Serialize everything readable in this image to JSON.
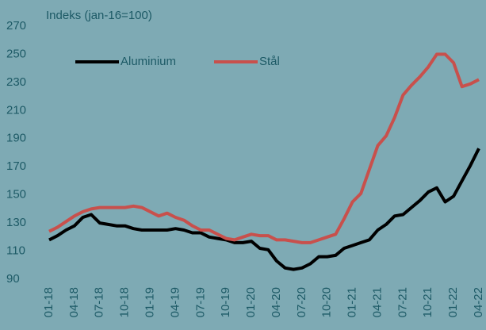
{
  "chart_data": {
    "type": "line",
    "title": "Indeks (jan-16=100)",
    "categories": [
      "01-18",
      null,
      null,
      "04-18",
      null,
      null,
      "07-18",
      null,
      null,
      "10-18",
      null,
      null,
      "01-19",
      null,
      null,
      "04-19",
      null,
      null,
      "07-19",
      null,
      null,
      "10-19",
      null,
      null,
      "01-20",
      null,
      null,
      "04-20",
      null,
      null,
      "07-20",
      null,
      null,
      "10-20",
      null,
      null,
      "01-21",
      null,
      null,
      "04-21",
      null,
      null,
      "07-21",
      null,
      null,
      "10-21",
      null,
      null,
      "01-22",
      null,
      null,
      "04-22"
    ],
    "series": [
      {
        "name": "Aluminium",
        "color": "#000000",
        "values": [
          118,
          121,
          125,
          128,
          134,
          136,
          130,
          129,
          128,
          128,
          126,
          125,
          125,
          125,
          125,
          126,
          125,
          123,
          123,
          120,
          119,
          118,
          116,
          116,
          117,
          112,
          111,
          103,
          98,
          97,
          98,
          101,
          106,
          106,
          107,
          112,
          114,
          116,
          118,
          125,
          129,
          135,
          136,
          141,
          146,
          152,
          155,
          145,
          149,
          160,
          171,
          183
        ]
      },
      {
        "name": "Stål",
        "color": "#c8504c",
        "values": [
          124,
          127,
          131,
          135,
          138,
          140,
          141,
          141,
          141,
          141,
          142,
          141,
          138,
          135,
          137,
          134,
          132,
          128,
          125,
          125,
          122,
          119,
          118,
          120,
          122,
          121,
          121,
          118,
          118,
          117,
          116,
          116,
          118,
          120,
          122,
          133,
          145,
          151,
          168,
          185,
          192,
          205,
          221,
          228,
          234,
          241,
          250,
          250,
          244,
          227,
          229,
          232
        ]
      }
    ],
    "ylim": [
      90,
      270
    ],
    "yticks": [
      90,
      110,
      130,
      150,
      170,
      190,
      210,
      230,
      250,
      270
    ],
    "legend": "upper left"
  }
}
